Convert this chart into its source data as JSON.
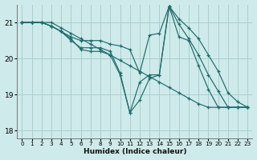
{
  "xlabel": "Humidex (Indice chaleur)",
  "xlim": [
    -0.5,
    23.5
  ],
  "ylim": [
    17.8,
    21.5
  ],
  "yticks": [
    18,
    19,
    20,
    21
  ],
  "xticks": [
    0,
    1,
    2,
    3,
    4,
    5,
    6,
    7,
    8,
    9,
    10,
    11,
    12,
    13,
    14,
    15,
    16,
    17,
    18,
    19,
    20,
    21,
    22,
    23
  ],
  "bg_color": "#ceeaea",
  "grid_color": "#aacfcf",
  "line_color": "#1f6b6b",
  "lines": [
    [
      21.0,
      21.0,
      21.0,
      21.0,
      20.85,
      20.7,
      20.55,
      20.4,
      20.25,
      20.1,
      19.95,
      19.8,
      19.65,
      19.5,
      19.35,
      19.2,
      19.05,
      18.9,
      18.75,
      18.65,
      18.65,
      18.65,
      18.65,
      18.65
    ],
    [
      21.0,
      21.0,
      21.0,
      20.9,
      20.75,
      20.5,
      20.3,
      20.3,
      20.3,
      20.2,
      19.6,
      18.5,
      18.85,
      19.45,
      19.55,
      21.45,
      20.6,
      20.5,
      19.8,
      19.15,
      18.65,
      18.65,
      18.65,
      18.65
    ],
    [
      21.0,
      21.0,
      21.0,
      20.9,
      20.75,
      20.55,
      20.25,
      20.2,
      20.2,
      20.1,
      19.55,
      18.5,
      19.35,
      19.55,
      19.55,
      21.45,
      20.95,
      20.55,
      20.1,
      19.55,
      19.1,
      18.65,
      18.65,
      18.65
    ],
    [
      21.0,
      21.0,
      21.0,
      20.9,
      20.75,
      20.6,
      20.5,
      20.5,
      20.5,
      20.4,
      20.35,
      20.25,
      19.6,
      20.65,
      20.7,
      21.45,
      21.1,
      20.85,
      20.55,
      20.1,
      19.65,
      19.05,
      18.8,
      18.65
    ]
  ]
}
